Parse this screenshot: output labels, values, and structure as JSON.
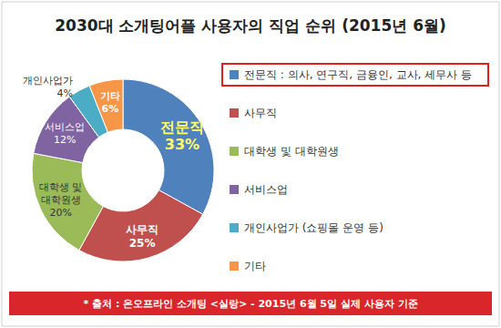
{
  "chart_data": {
    "type": "pie",
    "title": "2030대 소개팅어플 사용자의 직업 순위 (2015년 6월)",
    "categories": [
      "전문직",
      "사무직",
      "대학생 및 대학원생",
      "서비스업",
      "개인사업가",
      "기타"
    ],
    "values": [
      33,
      25,
      20,
      12,
      4,
      6
    ],
    "value_labels": [
      "33%",
      "25%",
      "20%",
      "12%",
      "4%",
      "6%"
    ],
    "colors": [
      "#4f81bd",
      "#c0504d",
      "#9bbb59",
      "#8064a2",
      "#4bacc6",
      "#f79646"
    ],
    "legend_entries": [
      "전문직 : 의사, 연구직, 금융인, 교사, 세무사 등",
      "사무직",
      "대학생 및 대학원생",
      "서비스업",
      "개인사업가 (쇼핑몰 운영 등)",
      "기타"
    ],
    "legend": "right",
    "data_labels": true,
    "source": "* 출처 : 온오프라인 소개팅 <실랑> - 2015년 6월 5일 실제 사용자 기준"
  }
}
